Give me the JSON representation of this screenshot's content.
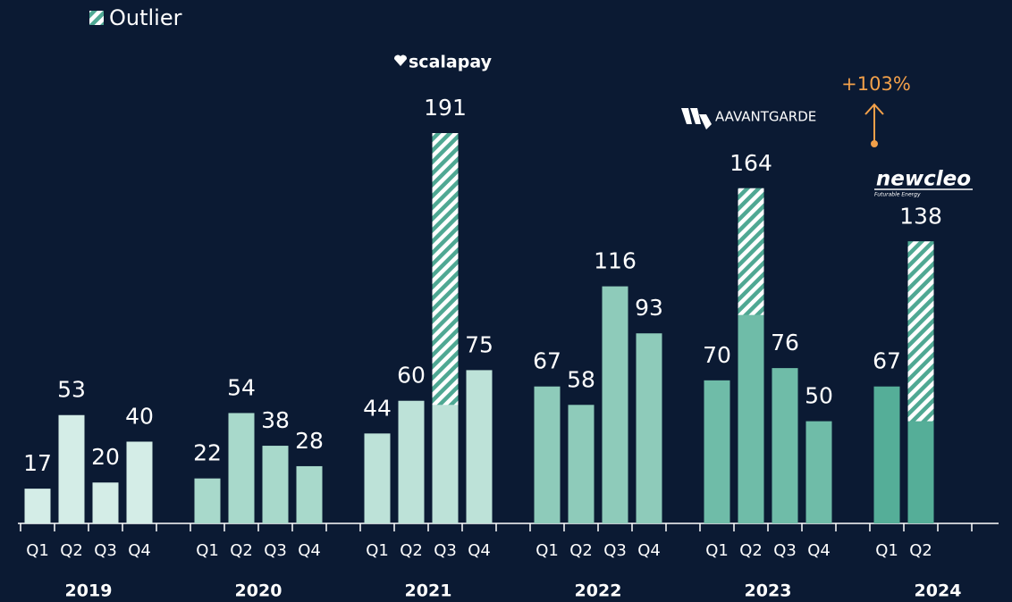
{
  "chart_data": {
    "type": "bar",
    "legend": "Outlier",
    "groups": [
      {
        "year": "2019",
        "color": "#d4ede7",
        "categories": [
          "Q1",
          "Q2",
          "Q3",
          "Q4"
        ],
        "values": [
          17,
          53,
          20,
          40
        ],
        "outliers": [
          null,
          null,
          null,
          null
        ]
      },
      {
        "year": "2020",
        "color": "#a8d9cb",
        "categories": [
          "Q1",
          "Q2",
          "Q3",
          "Q4"
        ],
        "values": [
          22,
          54,
          38,
          28
        ],
        "outliers": [
          null,
          null,
          null,
          null
        ]
      },
      {
        "year": "2021",
        "color": "#bde2d8",
        "categories": [
          "Q1",
          "Q2",
          "Q3",
          "Q4"
        ],
        "values": [
          44,
          60,
          191,
          75
        ],
        "outliers": [
          null,
          null,
          133,
          null
        ]
      },
      {
        "year": "2022",
        "color": "#8ecbba",
        "categories": [
          "Q1",
          "Q2",
          "Q3",
          "Q4"
        ],
        "values": [
          67,
          58,
          116,
          93
        ],
        "outliers": [
          null,
          null,
          null,
          null
        ]
      },
      {
        "year": "2023",
        "color": "#6fbca8",
        "categories": [
          "Q1",
          "Q2",
          "Q3",
          "Q4"
        ],
        "values": [
          70,
          164,
          76,
          50
        ],
        "outliers": [
          null,
          62,
          null,
          null
        ]
      },
      {
        "year": "2024",
        "color": "#55ae98",
        "categories": [
          "Q1",
          "Q2"
        ],
        "values": [
          67,
          138
        ],
        "outliers": [
          null,
          88
        ]
      }
    ],
    "annotations": {
      "scalapay": "scalapay",
      "aavantgarde": "AAVANTGARDE",
      "newcleo": "newcleo",
      "newcleo_tagline": "Futurable Energy",
      "growth": "+103%"
    }
  }
}
